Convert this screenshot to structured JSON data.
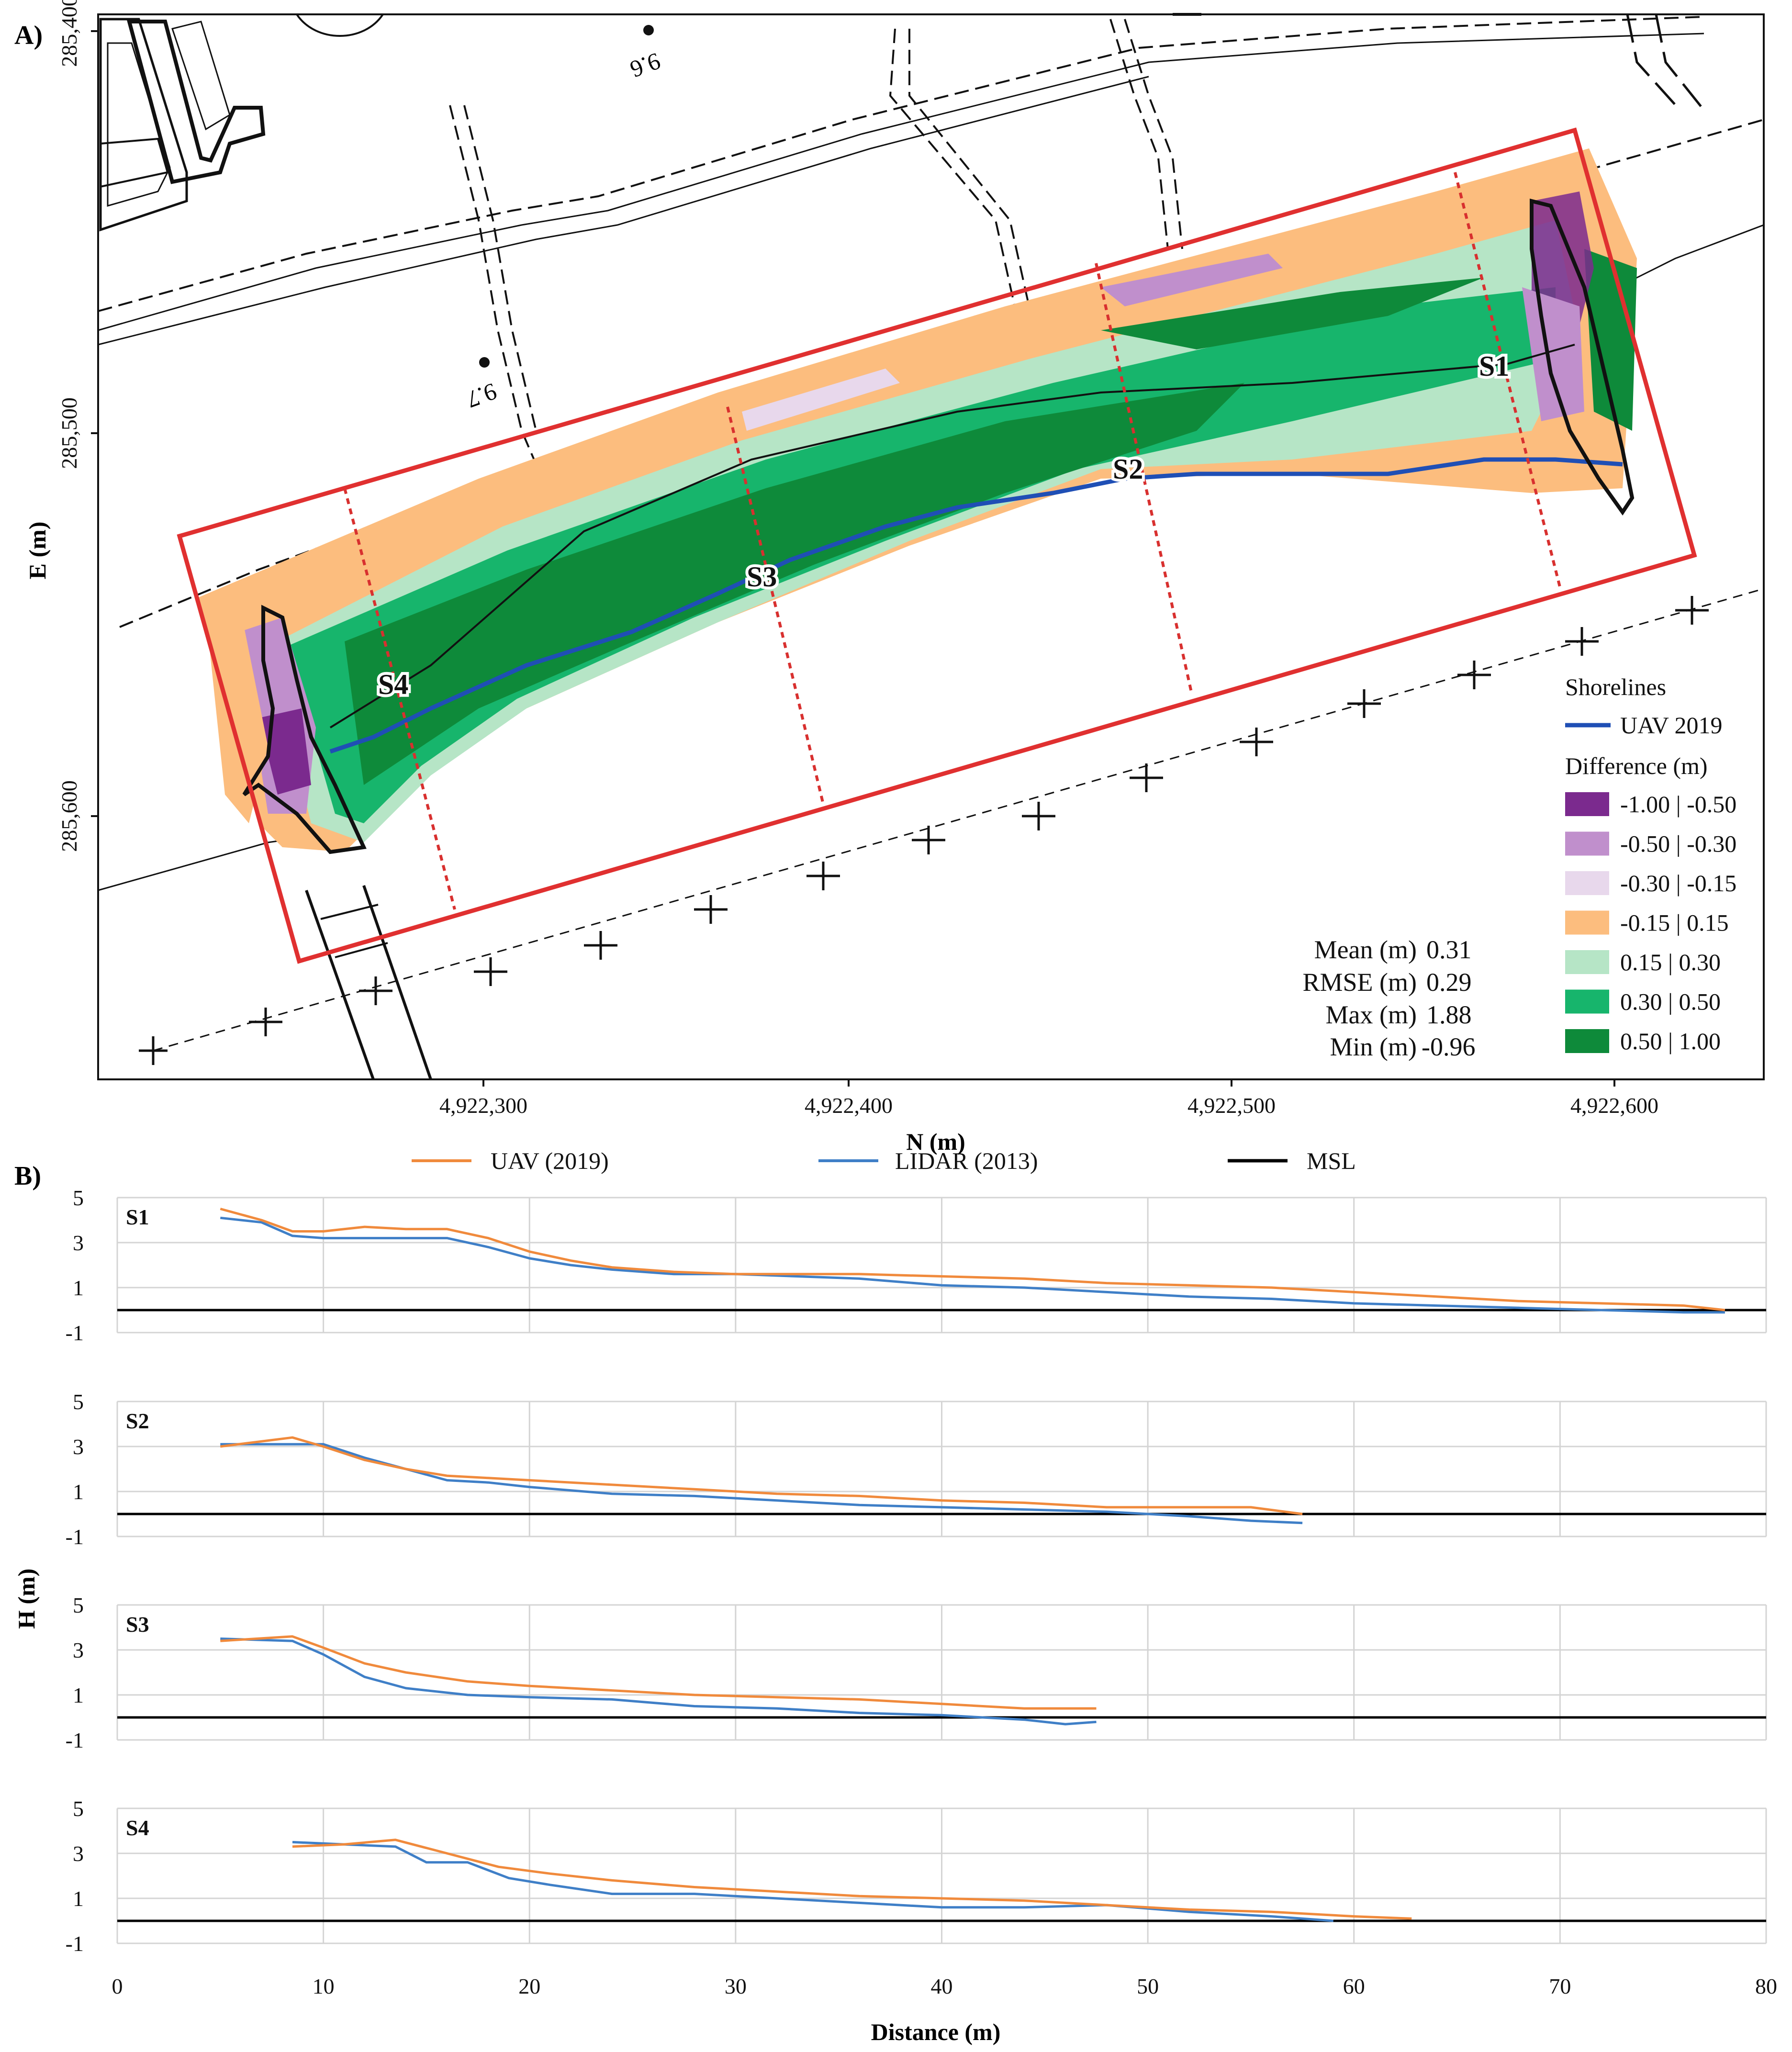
{
  "panel_a": {
    "label": "A)",
    "x_axis_title": "N (m)",
    "y_axis_title": "E (m)",
    "x_ticks": [
      "4,922,300",
      "4,922,400",
      "4,922,500",
      "4,922,600"
    ],
    "y_ticks": [
      "285,400",
      "285,500",
      "285,600"
    ],
    "section_labels": [
      "S1",
      "S2",
      "S3",
      "S4"
    ],
    "map_text": [
      "9.6",
      "9.7"
    ],
    "legend": {
      "shorelines_title": "Shorelines",
      "shoreline_item": "UAV 2019",
      "difference_title": "Difference (m)",
      "classes": [
        {
          "label": "-1.00 | -0.50",
          "color": "#7b2a8e"
        },
        {
          "label": "-0.50 | -0.30",
          "color": "#c08fcc"
        },
        {
          "label": "-0.30 | -0.15",
          "color": "#e8d8ec"
        },
        {
          "label": "-0.15 | 0.15",
          "color": "#fcbd7e"
        },
        {
          "label": "0.15 | 0.30",
          "color": "#b6e5c6"
        },
        {
          "label": "0.30 | 0.50",
          "color": "#17b56c"
        },
        {
          "label": "0.50 | 1.00",
          "color": "#0e8a3a"
        }
      ]
    },
    "stats": [
      {
        "label": "Mean (m)",
        "value": "0.31"
      },
      {
        "label": "RMSE (m)",
        "value": "0.29"
      },
      {
        "label": "Max (m)",
        "value": "1.88"
      },
      {
        "label": "Min (m)",
        "value": "-0.96"
      }
    ],
    "colors": {
      "frame": "#e03030",
      "section": "#d8302f",
      "shoreline": "#1f4fb5"
    }
  },
  "panel_b": {
    "label": "B)",
    "legend": [
      {
        "name": "UAV (2019)",
        "color": "#f08a3c"
      },
      {
        "name": "LIDAR (2013)",
        "color": "#3f7fc7"
      },
      {
        "name": "MSL",
        "color": "#000000"
      }
    ],
    "y_axis_title": "H (m)",
    "x_axis_title": "Distance (m)",
    "x_tick_labels": [
      "0",
      "10",
      "20",
      "30",
      "40",
      "50",
      "60",
      "70",
      "80"
    ],
    "y_tick_labels": [
      "5",
      "3",
      "1",
      "-1"
    ]
  },
  "chart_data": [
    {
      "type": "line",
      "title": "S1",
      "xlabel": "Distance (m)",
      "ylabel": "H (m)",
      "xlim": [
        0,
        80
      ],
      "ylim": [
        -1,
        5
      ],
      "grid": true,
      "series": [
        {
          "name": "UAV (2019)",
          "x": [
            5,
            7,
            8.5,
            10,
            12,
            14,
            16,
            18,
            20,
            22,
            24,
            27,
            30,
            33,
            36,
            40,
            44,
            48,
            52,
            56,
            60,
            64,
            68,
            72,
            76,
            78
          ],
          "y": [
            4.5,
            4.0,
            3.5,
            3.5,
            3.7,
            3.6,
            3.6,
            3.2,
            2.6,
            2.2,
            1.9,
            1.7,
            1.6,
            1.6,
            1.6,
            1.5,
            1.4,
            1.2,
            1.1,
            1.0,
            0.8,
            0.6,
            0.4,
            0.3,
            0.2,
            0.0
          ]
        },
        {
          "name": "LIDAR (2013)",
          "x": [
            5,
            7,
            8.5,
            10,
            12,
            14,
            16,
            18,
            20,
            22,
            24,
            27,
            30,
            33,
            36,
            40,
            44,
            48,
            52,
            56,
            60,
            64,
            68,
            72,
            76,
            78
          ],
          "y": [
            4.1,
            3.9,
            3.3,
            3.2,
            3.2,
            3.2,
            3.2,
            2.8,
            2.3,
            2.0,
            1.8,
            1.6,
            1.6,
            1.5,
            1.4,
            1.1,
            1.0,
            0.8,
            0.6,
            0.5,
            0.3,
            0.2,
            0.1,
            0.0,
            -0.1,
            -0.1
          ]
        },
        {
          "name": "MSL",
          "x": [
            0,
            80
          ],
          "y": [
            0,
            0
          ]
        }
      ]
    },
    {
      "type": "line",
      "title": "S2",
      "xlabel": "Distance (m)",
      "ylabel": "H (m)",
      "xlim": [
        0,
        80
      ],
      "ylim": [
        -1,
        5
      ],
      "grid": true,
      "series": [
        {
          "name": "UAV (2019)",
          "x": [
            5,
            8.5,
            10,
            12,
            14,
            16,
            18,
            20,
            24,
            28,
            32,
            36,
            40,
            44,
            48,
            52,
            55,
            57.5
          ],
          "y": [
            3.0,
            3.4,
            3.0,
            2.4,
            2.0,
            1.7,
            1.6,
            1.5,
            1.3,
            1.1,
            0.9,
            0.8,
            0.6,
            0.5,
            0.3,
            0.3,
            0.3,
            0.0
          ]
        },
        {
          "name": "LIDAR (2013)",
          "x": [
            5,
            8.5,
            10,
            12,
            14,
            16,
            18,
            20,
            24,
            28,
            32,
            36,
            40,
            44,
            48,
            52,
            55,
            57.5
          ],
          "y": [
            3.1,
            3.1,
            3.1,
            2.5,
            2.0,
            1.5,
            1.4,
            1.2,
            0.9,
            0.8,
            0.6,
            0.4,
            0.3,
            0.2,
            0.1,
            -0.1,
            -0.3,
            -0.4
          ]
        },
        {
          "name": "MSL",
          "x": [
            0,
            80
          ],
          "y": [
            0,
            0
          ]
        }
      ]
    },
    {
      "type": "line",
      "title": "S3",
      "xlabel": "Distance (m)",
      "ylabel": "H (m)",
      "xlim": [
        0,
        80
      ],
      "ylim": [
        -1,
        5
      ],
      "grid": true,
      "series": [
        {
          "name": "UAV (2019)",
          "x": [
            5,
            8.5,
            10,
            12,
            14,
            17,
            20,
            24,
            28,
            32,
            36,
            40,
            44,
            47.5
          ],
          "y": [
            3.4,
            3.6,
            3.1,
            2.4,
            2.0,
            1.6,
            1.4,
            1.2,
            1.0,
            0.9,
            0.8,
            0.6,
            0.4,
            0.4
          ]
        },
        {
          "name": "LIDAR (2013)",
          "x": [
            5,
            8.5,
            10,
            12,
            14,
            17,
            20,
            24,
            28,
            32,
            36,
            40,
            44,
            46,
            47.5
          ],
          "y": [
            3.5,
            3.4,
            2.8,
            1.8,
            1.3,
            1.0,
            0.9,
            0.8,
            0.5,
            0.4,
            0.2,
            0.1,
            -0.1,
            -0.3,
            -0.2
          ]
        },
        {
          "name": "MSL",
          "x": [
            0,
            80
          ],
          "y": [
            0,
            0
          ]
        }
      ]
    },
    {
      "type": "line",
      "title": "S4",
      "xlabel": "Distance (m)",
      "ylabel": "H (m)",
      "xlim": [
        0,
        80
      ],
      "ylim": [
        -1,
        5
      ],
      "grid": true,
      "series": [
        {
          "name": "UAV (2019)",
          "x": [
            8.5,
            11,
            13.5,
            16,
            18.5,
            21,
            24,
            28,
            32,
            36,
            40,
            44,
            48,
            52,
            56,
            60,
            62.8
          ],
          "y": [
            3.3,
            3.4,
            3.6,
            3.0,
            2.4,
            2.1,
            1.8,
            1.5,
            1.3,
            1.1,
            1.0,
            0.9,
            0.7,
            0.5,
            0.4,
            0.2,
            0.1
          ]
        },
        {
          "name": "LIDAR (2013)",
          "x": [
            8.5,
            11,
            13.5,
            15,
            17,
            19,
            21,
            24,
            28,
            32,
            36,
            40,
            44,
            48,
            52,
            56,
            59
          ],
          "y": [
            3.5,
            3.4,
            3.3,
            2.6,
            2.6,
            1.9,
            1.6,
            1.2,
            1.2,
            1.0,
            0.8,
            0.6,
            0.6,
            0.7,
            0.4,
            0.2,
            0.0
          ]
        },
        {
          "name": "MSL",
          "x": [
            0,
            80
          ],
          "y": [
            0,
            0
          ]
        }
      ]
    }
  ]
}
